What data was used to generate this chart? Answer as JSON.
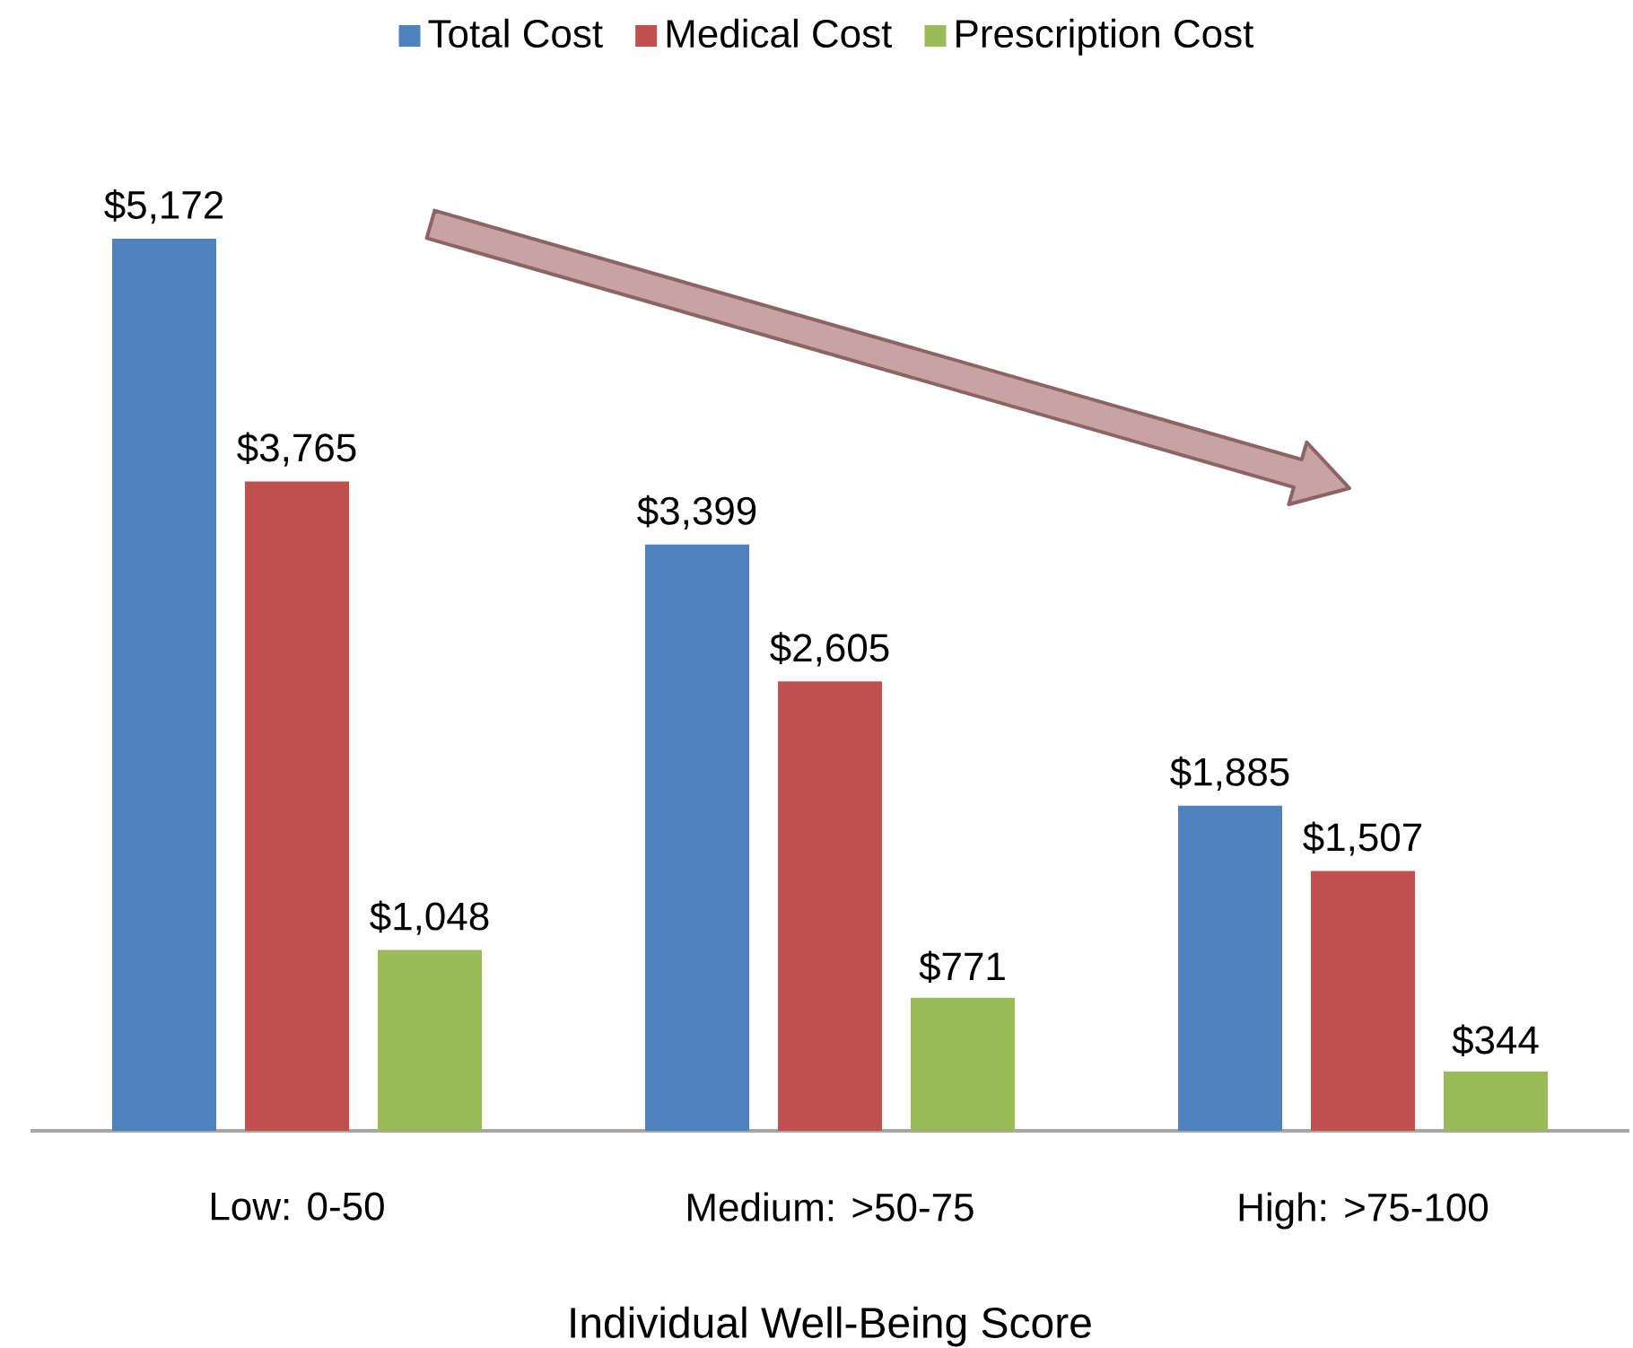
{
  "chart_data": {
    "type": "bar",
    "categories": [
      "Low: 0-50",
      "Medium: >50-75",
      "High: >75-100"
    ],
    "xlabel": "Individual Well-Being Score",
    "series": [
      {
        "name": "Total Cost",
        "color": "#4f81bd",
        "values": [
          5172,
          3399,
          1885
        ],
        "value_labels": [
          "$5,172",
          "$3,399",
          "$1,885"
        ]
      },
      {
        "name": "Medical Cost",
        "color": "#c0504d",
        "values": [
          3765,
          2605,
          1507
        ],
        "value_labels": [
          "$3,765",
          "$2,605",
          "$1,507"
        ]
      },
      {
        "name": "Prescription Cost",
        "color": "#9bbb59",
        "values": [
          1048,
          771,
          344
        ],
        "value_labels": [
          "$1,048",
          "$771",
          "$344"
        ]
      }
    ],
    "legend": "top"
  }
}
